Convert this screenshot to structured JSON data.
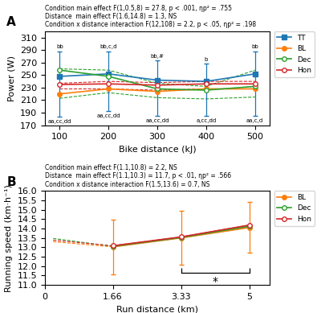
{
  "chart_data": [
    {
      "type": "line",
      "title": "A",
      "xlabel": "Bike distance (kJ)",
      "ylabel": "Power (W)",
      "x": [
        100,
        200,
        300,
        400,
        500
      ],
      "xlim": [
        70,
        530
      ],
      "xticks": [
        100,
        200,
        300,
        400,
        500
      ],
      "ylim": [
        170,
        320
      ],
      "yticks": [
        170,
        190,
        210,
        230,
        250,
        270,
        290,
        310
      ],
      "series": [
        {
          "name": "TT",
          "marker": "square",
          "values": [
            248,
            252,
            242,
            240,
            252
          ],
          "error_upper": [
            288,
            288,
            273,
            268,
            288
          ],
          "error_lower": [
            183,
            192,
            185,
            185,
            185
          ],
          "labels_above": [
            "bb",
            "bb,c,d",
            "bb,#",
            "b",
            "bb"
          ],
          "labels_below": [
            "aa,cc,dd",
            "aa,cc,dd",
            "aa,cc,dd",
            "a,cc,dd",
            "aa,c,d"
          ]
        },
        {
          "name": "BL",
          "marker": "circle",
          "values": [
            220,
            228,
            224,
            228,
            228
          ]
        },
        {
          "name": "Dec",
          "marker": "open circle",
          "values": [
            258,
            248,
            228,
            226,
            232
          ],
          "ci_upper": [
            260,
            258,
            237,
            232,
            258
          ],
          "ci_lower": [
            213,
            222,
            214,
            212,
            215
          ]
        },
        {
          "name": "Hon",
          "marker": "open circle",
          "values": [
            235,
            236,
            234,
            236,
            236
          ],
          "ci_upper": [
            237,
            240,
            238,
            240,
            240
          ],
          "ci_lower": [
            228,
            228,
            226,
            228,
            228
          ]
        }
      ],
      "legend": "upper right",
      "stats_text": [
        "Condition main effect F(1,0.5,8) = 27.8, p < .001, ηp² = .755",
        "Distance  main effect F(1.6,14.8) = 1.3, NS",
        "Condition x distance interaction F(12,108) = 2.2, p < .05, ηp² = .198"
      ]
    },
    {
      "type": "line",
      "title": "B",
      "xlabel": "Run distance (km)",
      "ylabel": "Running speed (km·h⁻¹)",
      "x": [
        1.66,
        3.33,
        5.0
      ],
      "xlim": [
        0,
        5.5
      ],
      "xticks": [
        0,
        1.66,
        3.33,
        5
      ],
      "ylim": [
        11.0,
        16.0
      ],
      "yticks": [
        11.0,
        11.5,
        12.0,
        12.5,
        13.0,
        13.5,
        14.0,
        14.5,
        15.0,
        15.5,
        16.0
      ],
      "dashed_x": [
        0.2,
        1.66,
        3.33,
        5.0
      ],
      "series": [
        {
          "name": "BL",
          "marker": "circle",
          "values": [
            13.02,
            13.5,
            14.05
          ],
          "error": [
            1.45,
            1.45,
            1.35
          ],
          "dashed_values": [
            13.3,
            13.02,
            13.5,
            14.05
          ]
        },
        {
          "name": "Dec",
          "marker": "open circle",
          "values": [
            13.05,
            13.52,
            14.12
          ],
          "dashed_values": [
            13.47,
            13.05,
            13.52,
            14.12
          ]
        },
        {
          "name": "Hon",
          "marker": "open circle",
          "values": [
            13.08,
            13.55,
            14.18
          ],
          "dashed_values": [
            13.38,
            13.08,
            13.55,
            14.18
          ]
        }
      ],
      "bracket": {
        "x1": 3.33,
        "x2": 5.0,
        "y": 11.65
      },
      "annotations": [
        {
          "text": "*",
          "x": 4.17,
          "y": 11.45
        }
      ],
      "legend": "upper right",
      "stats_text": [
        "Condition main effect F(1.1,10.8) = 2.2, NS",
        "Distance  main effect F(1.1,10.3) = 11.7, p < .01, ηp² = .566",
        "Condition x distance interaction F(1.5,13.6) = 0.7, NS"
      ]
    }
  ]
}
